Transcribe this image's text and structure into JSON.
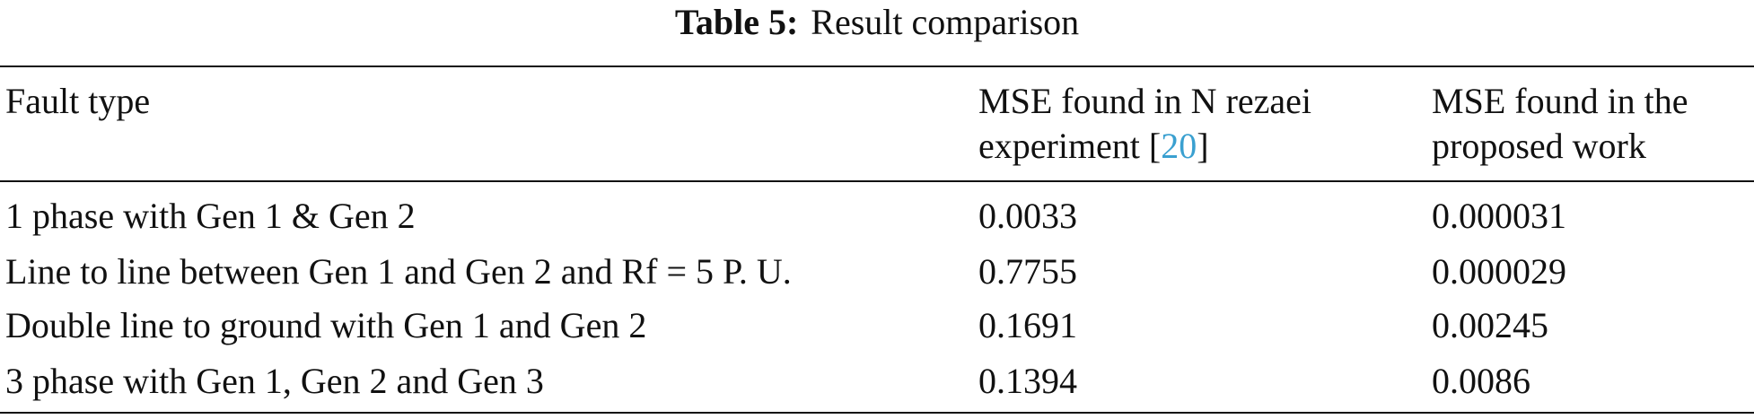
{
  "caption": {
    "label": "Table 5:",
    "text": "Result comparison"
  },
  "table": {
    "header": [
      {
        "lines": [
          "Fault type"
        ]
      },
      {
        "lines": [
          "MSE found in N rezaei",
          "experiment"
        ],
        "ref_open": "[",
        "ref": "20",
        "ref_close": "]"
      },
      {
        "lines": [
          "MSE found in the",
          "proposed work"
        ]
      }
    ],
    "rows": [
      [
        "1 phase with Gen 1 & Gen 2",
        "0.0033",
        "0.000031"
      ],
      [
        "Line to line between Gen 1 and Gen 2 and Rf = 5 P. U.",
        "0.7755",
        "0.000029"
      ],
      [
        "Double line to ground with Gen 1 and Gen 2",
        "0.1691",
        "0.00245"
      ],
      [
        "3 phase with Gen 1, Gen 2 and Gen 3",
        "0.1394",
        "0.0086"
      ]
    ]
  }
}
